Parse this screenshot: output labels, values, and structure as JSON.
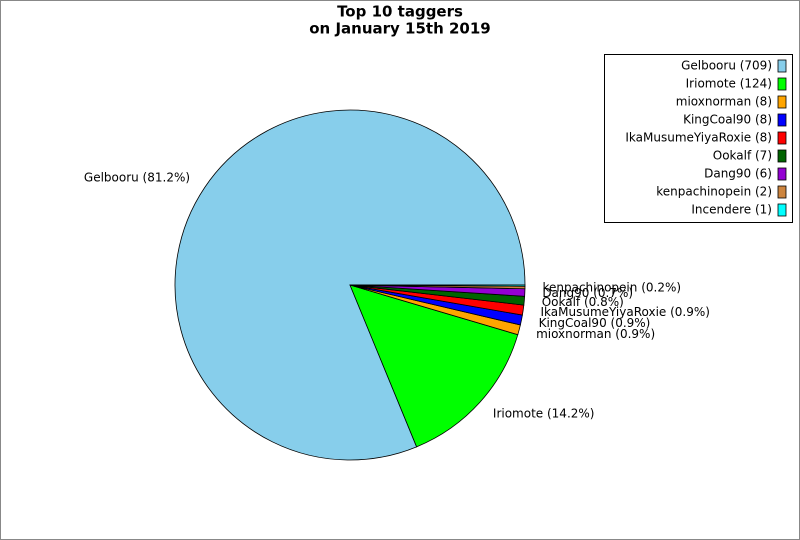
{
  "chart_data": {
    "type": "pie",
    "title": [
      "Top 10 taggers",
      "on January 15th 2019"
    ],
    "categories": [
      "Gelbooru",
      "Iriomote",
      "mioxnorman",
      "KingCoal90",
      "IkaMusumeYiyaRoxie",
      "Ookalf",
      "Dang90",
      "kenpachinopein",
      "Incendere"
    ],
    "values": [
      709,
      124,
      8,
      8,
      8,
      7,
      6,
      2,
      1
    ],
    "colors": [
      "#87ceeb",
      "#00ff00",
      "#ffa500",
      "#0000ff",
      "#ff0000",
      "#006400",
      "#9400d3",
      "#cd853f",
      "#00ffff"
    ],
    "legend_labels": [
      "Gelbooru (709)",
      "Iriomote (124)",
      "mioxnorman (8)",
      "KingCoal90 (8)",
      "IkaMusumeYiyaRoxie (8)",
      "Ookalf (7)",
      "Dang90 (6)",
      "kenpachinopein (2)",
      "Incendere (1)"
    ],
    "value_labels": [
      "Gelbooru (81.2%)",
      "Iriomote (14.2%)",
      "mioxnorman (0.9%)",
      "KingCoal90 (0.9%)",
      "IkaMusumeYiyaRoxie (0.9%)",
      "Ookalf (0.8%)",
      "Dang90 (0.7%)",
      "kenpachinopein (0.2%)",
      null
    ],
    "legend": "upper right"
  }
}
